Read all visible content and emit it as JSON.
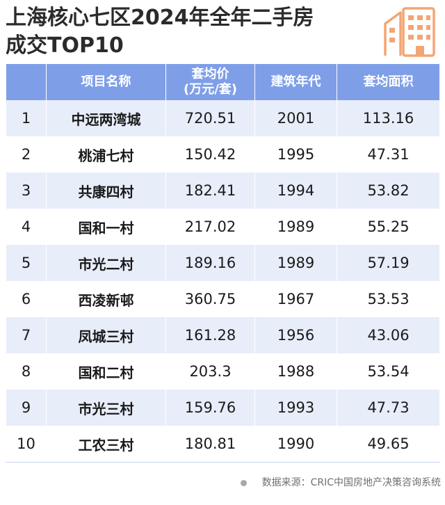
{
  "title": {
    "line1": "上海核心七区2024年全年二手房",
    "line2": "成交TOP10"
  },
  "table": {
    "headers": [
      "",
      "项目名称",
      "套均价\n(万元/套)",
      "建筑年代",
      "套均面积"
    ],
    "rows": [
      [
        "1",
        "中远两湾城",
        "720.51",
        "2001",
        "113.16"
      ],
      [
        "2",
        "桃浦七村",
        "150.42",
        "1995",
        "47.31"
      ],
      [
        "3",
        "共康四村",
        "182.41",
        "1994",
        "53.82"
      ],
      [
        "4",
        "国和一村",
        "217.02",
        "1989",
        "55.25"
      ],
      [
        "5",
        "市光二村",
        "189.16",
        "1989",
        "57.19"
      ],
      [
        "6",
        "西凌新邨",
        "360.75",
        "1967",
        "53.53"
      ],
      [
        "7",
        "凤城三村",
        "161.28",
        "1956",
        "43.06"
      ],
      [
        "8",
        "国和二村",
        "203.3",
        "1988",
        "53.54"
      ],
      [
        "9",
        "市光三村",
        "159.76",
        "1993",
        "47.73"
      ],
      [
        "10",
        "工农三村",
        "180.81",
        "1990",
        "49.65"
      ]
    ]
  },
  "footer": {
    "source": "数据来源：CRIC中国房地产决策咨询系统"
  },
  "colors": {
    "header_bg": "#7e9fe8",
    "row_alt_bg": "#e7edf9",
    "icon_accent": "#f3a574"
  },
  "icons": {
    "deco": "building-icon"
  }
}
